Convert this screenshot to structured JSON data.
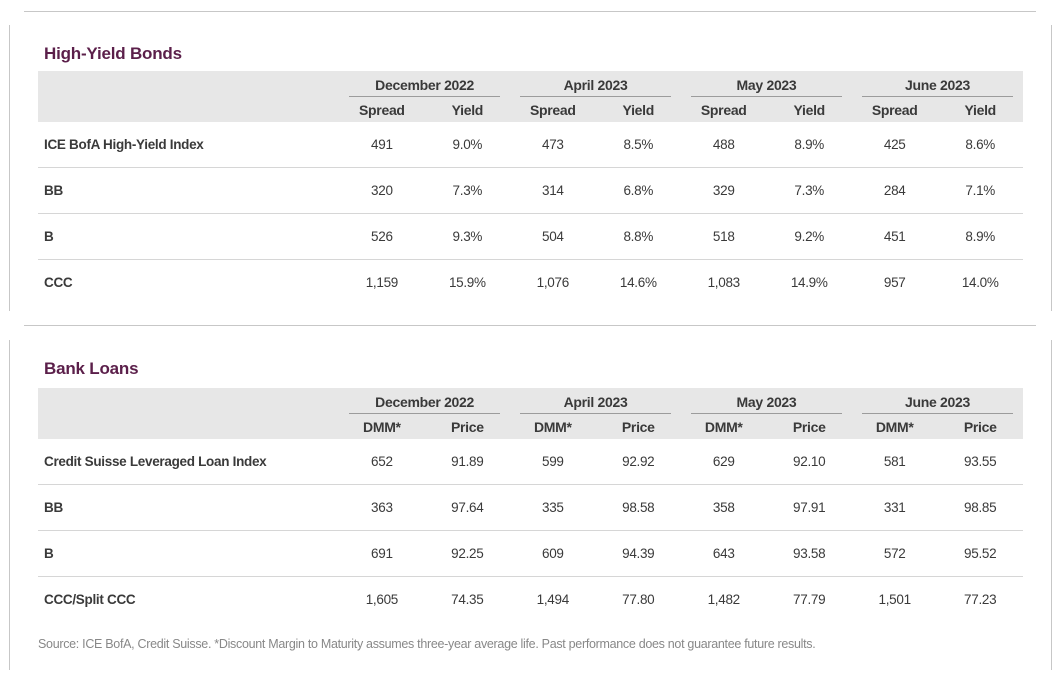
{
  "high_yield": {
    "title": "High-Yield Bonds",
    "periods": [
      "December 2022",
      "April 2023",
      "May 2023",
      "June 2023"
    ],
    "subcols": [
      "Spread",
      "Yield"
    ],
    "rows": [
      {
        "name": "ICE BofA High-Yield Index",
        "values": [
          "491",
          "9.0%",
          "473",
          "8.5%",
          "488",
          "8.9%",
          "425",
          "8.6%"
        ]
      },
      {
        "name": "BB",
        "values": [
          "320",
          "7.3%",
          "314",
          "6.8%",
          "329",
          "7.3%",
          "284",
          "7.1%"
        ]
      },
      {
        "name": "B",
        "values": [
          "526",
          "9.3%",
          "504",
          "8.8%",
          "518",
          "9.2%",
          "451",
          "8.9%"
        ]
      },
      {
        "name": "CCC",
        "values": [
          "1,159",
          "15.9%",
          "1,076",
          "14.6%",
          "1,083",
          "14.9%",
          "957",
          "14.0%"
        ]
      }
    ]
  },
  "bank_loans": {
    "title": "Bank Loans",
    "periods": [
      "December 2022",
      "April 2023",
      "May 2023",
      "June 2023"
    ],
    "subcols": [
      "DMM*",
      "Price"
    ],
    "rows": [
      {
        "name": "Credit Suisse Leveraged Loan Index",
        "values": [
          "652",
          "91.89",
          "599",
          "92.92",
          "629",
          "92.10",
          "581",
          "93.55"
        ]
      },
      {
        "name": "BB",
        "values": [
          "363",
          "97.64",
          "335",
          "98.58",
          "358",
          "97.91",
          "331",
          "98.85"
        ]
      },
      {
        "name": "B",
        "values": [
          "691",
          "92.25",
          "609",
          "94.39",
          "643",
          "93.58",
          "572",
          "95.52"
        ]
      },
      {
        "name": "CCC/Split CCC",
        "values": [
          "1,605",
          "74.35",
          "1,494",
          "77.80",
          "1,482",
          "77.79",
          "1,501",
          "77.23"
        ]
      }
    ]
  },
  "footnote": "Source: ICE BofA, Credit Suisse. *Discount Margin to Maturity assumes three-year average life. Past performance does not guarantee future results."
}
